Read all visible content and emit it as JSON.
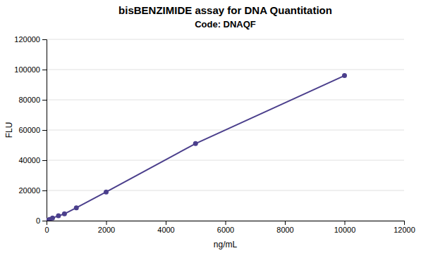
{
  "chart_data": {
    "type": "line",
    "title": "bisBENZIMIDE assay for DNA Quantitation",
    "subtitle": "Code: DNAQF",
    "xlabel": "ng/mL",
    "ylabel": "FLU",
    "x": [
      0,
      100,
      200,
      400,
      600,
      1000,
      2000,
      5000,
      10000
    ],
    "values": [
      200,
      800,
      1800,
      3200,
      4500,
      8500,
      19000,
      51000,
      96000
    ],
    "color": "#4B3F8C",
    "marker": "circle",
    "xlim": [
      0,
      12000
    ],
    "ylim": [
      0,
      120000
    ],
    "xticks": [
      0,
      2000,
      4000,
      6000,
      8000,
      10000,
      12000
    ],
    "yticks": [
      0,
      20000,
      40000,
      60000,
      80000,
      100000,
      120000
    ],
    "grid": true
  }
}
